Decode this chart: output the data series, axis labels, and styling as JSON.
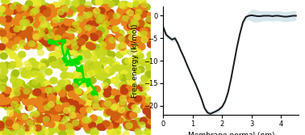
{
  "x": [
    0.0,
    0.1,
    0.2,
    0.3,
    0.4,
    0.5,
    0.6,
    0.7,
    0.8,
    0.9,
    1.0,
    1.1,
    1.2,
    1.3,
    1.4,
    1.5,
    1.6,
    1.7,
    1.8,
    1.9,
    2.0,
    2.1,
    2.2,
    2.3,
    2.4,
    2.5,
    2.6,
    2.7,
    2.8,
    2.9,
    3.0,
    3.1,
    3.2,
    3.3,
    3.4,
    3.5,
    3.6,
    3.7,
    3.8,
    3.9,
    4.0,
    4.1,
    4.2,
    4.3,
    4.4,
    4.5
  ],
  "y": [
    -2.5,
    -4.2,
    -4.8,
    -5.3,
    -5.0,
    -6.2,
    -7.8,
    -9.2,
    -10.8,
    -12.3,
    -13.8,
    -15.2,
    -16.8,
    -18.5,
    -20.5,
    -21.5,
    -21.8,
    -21.5,
    -21.2,
    -20.8,
    -20.2,
    -19.0,
    -17.0,
    -14.0,
    -10.5,
    -7.0,
    -4.0,
    -1.5,
    -0.3,
    0.0,
    0.1,
    0.0,
    -0.1,
    -0.1,
    0.0,
    0.0,
    0.0,
    -0.1,
    0.0,
    0.0,
    -0.1,
    -0.2,
    -0.2,
    -0.1,
    0.0,
    0.0
  ],
  "y_err": [
    1.2,
    0.6,
    0.5,
    0.5,
    0.6,
    0.5,
    0.5,
    0.5,
    0.5,
    0.5,
    0.5,
    0.5,
    0.5,
    0.5,
    0.6,
    0.6,
    0.6,
    0.5,
    0.5,
    0.5,
    0.5,
    0.5,
    0.5,
    0.5,
    0.5,
    0.5,
    0.5,
    0.5,
    0.6,
    0.9,
    1.3,
    1.4,
    1.3,
    1.2,
    1.1,
    1.1,
    1.1,
    1.1,
    1.1,
    1.1,
    1.1,
    1.1,
    1.1,
    1.1,
    1.1,
    1.1
  ],
  "line_color": "#1a1a1a",
  "fill_color": "#a8c8d8",
  "fill_alpha": 0.45,
  "xlabel": "Membrane normal (nm)",
  "ylabel": "Free energy (kJ/mol)",
  "xlim": [
    0,
    4.6
  ],
  "ylim": [
    -22,
    2
  ],
  "xticks": [
    0,
    1,
    2,
    3,
    4
  ],
  "yticks": [
    0,
    -5,
    -10,
    -15,
    -20
  ],
  "bg_color": "#ffffff",
  "linewidth": 1.4,
  "img_bg_color": "#b8c830",
  "orange_color": "#e8821a",
  "dark_orange_color": "#c04010",
  "yellow_green_color": "#c8d820",
  "bright_yellow": "#e8e830",
  "green_path_color": "#00dd00"
}
